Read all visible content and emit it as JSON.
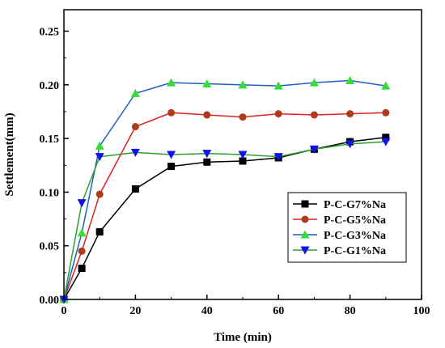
{
  "chart_data": {
    "type": "line",
    "xlabel": "Time (min)",
    "ylabel": "Settlement(mm)",
    "xlim": [
      0,
      100
    ],
    "ylim": [
      0,
      0.27
    ],
    "x_ticks": [
      "0",
      "20",
      "40",
      "60",
      "80",
      "100"
    ],
    "y_ticks": [
      "0.00",
      "0.05",
      "0.10",
      "0.15",
      "0.20",
      "0.25"
    ],
    "grid": false,
    "legend_position": "bottom-right",
    "x": [
      0,
      5,
      10,
      20,
      30,
      40,
      50,
      60,
      70,
      80,
      90
    ],
    "series": [
      {
        "name": "P-C-G7%Na",
        "color": "#000000",
        "marker": "square",
        "values": [
          0.0,
          0.029,
          0.063,
          0.103,
          0.124,
          0.128,
          0.129,
          0.132,
          0.14,
          0.147,
          0.151
        ]
      },
      {
        "name": "P-C-G5%Na",
        "color": "#dd2222",
        "marker": "circle",
        "values": [
          0.0,
          0.045,
          0.098,
          0.161,
          0.174,
          0.172,
          0.17,
          0.173,
          0.172,
          0.173,
          0.174
        ]
      },
      {
        "name": "P-C-G3%Na",
        "color": "#1f5fc4",
        "marker": "triangle-up",
        "values": [
          0.0,
          0.062,
          0.143,
          0.192,
          0.202,
          0.201,
          0.2,
          0.199,
          0.202,
          0.204,
          0.199
        ]
      },
      {
        "name": "P-C-G1%Na",
        "color": "#2ca02c",
        "marker": "triangle-down",
        "values": [
          0.0,
          0.09,
          0.133,
          0.137,
          0.135,
          0.136,
          0.135,
          0.133,
          0.14,
          0.145,
          0.147
        ]
      }
    ],
    "marker_fill_colors": {
      "triangle-up": "#33dd33",
      "triangle-down": "#1111ee",
      "circle": "#b03a1a",
      "square": "#000000"
    }
  }
}
